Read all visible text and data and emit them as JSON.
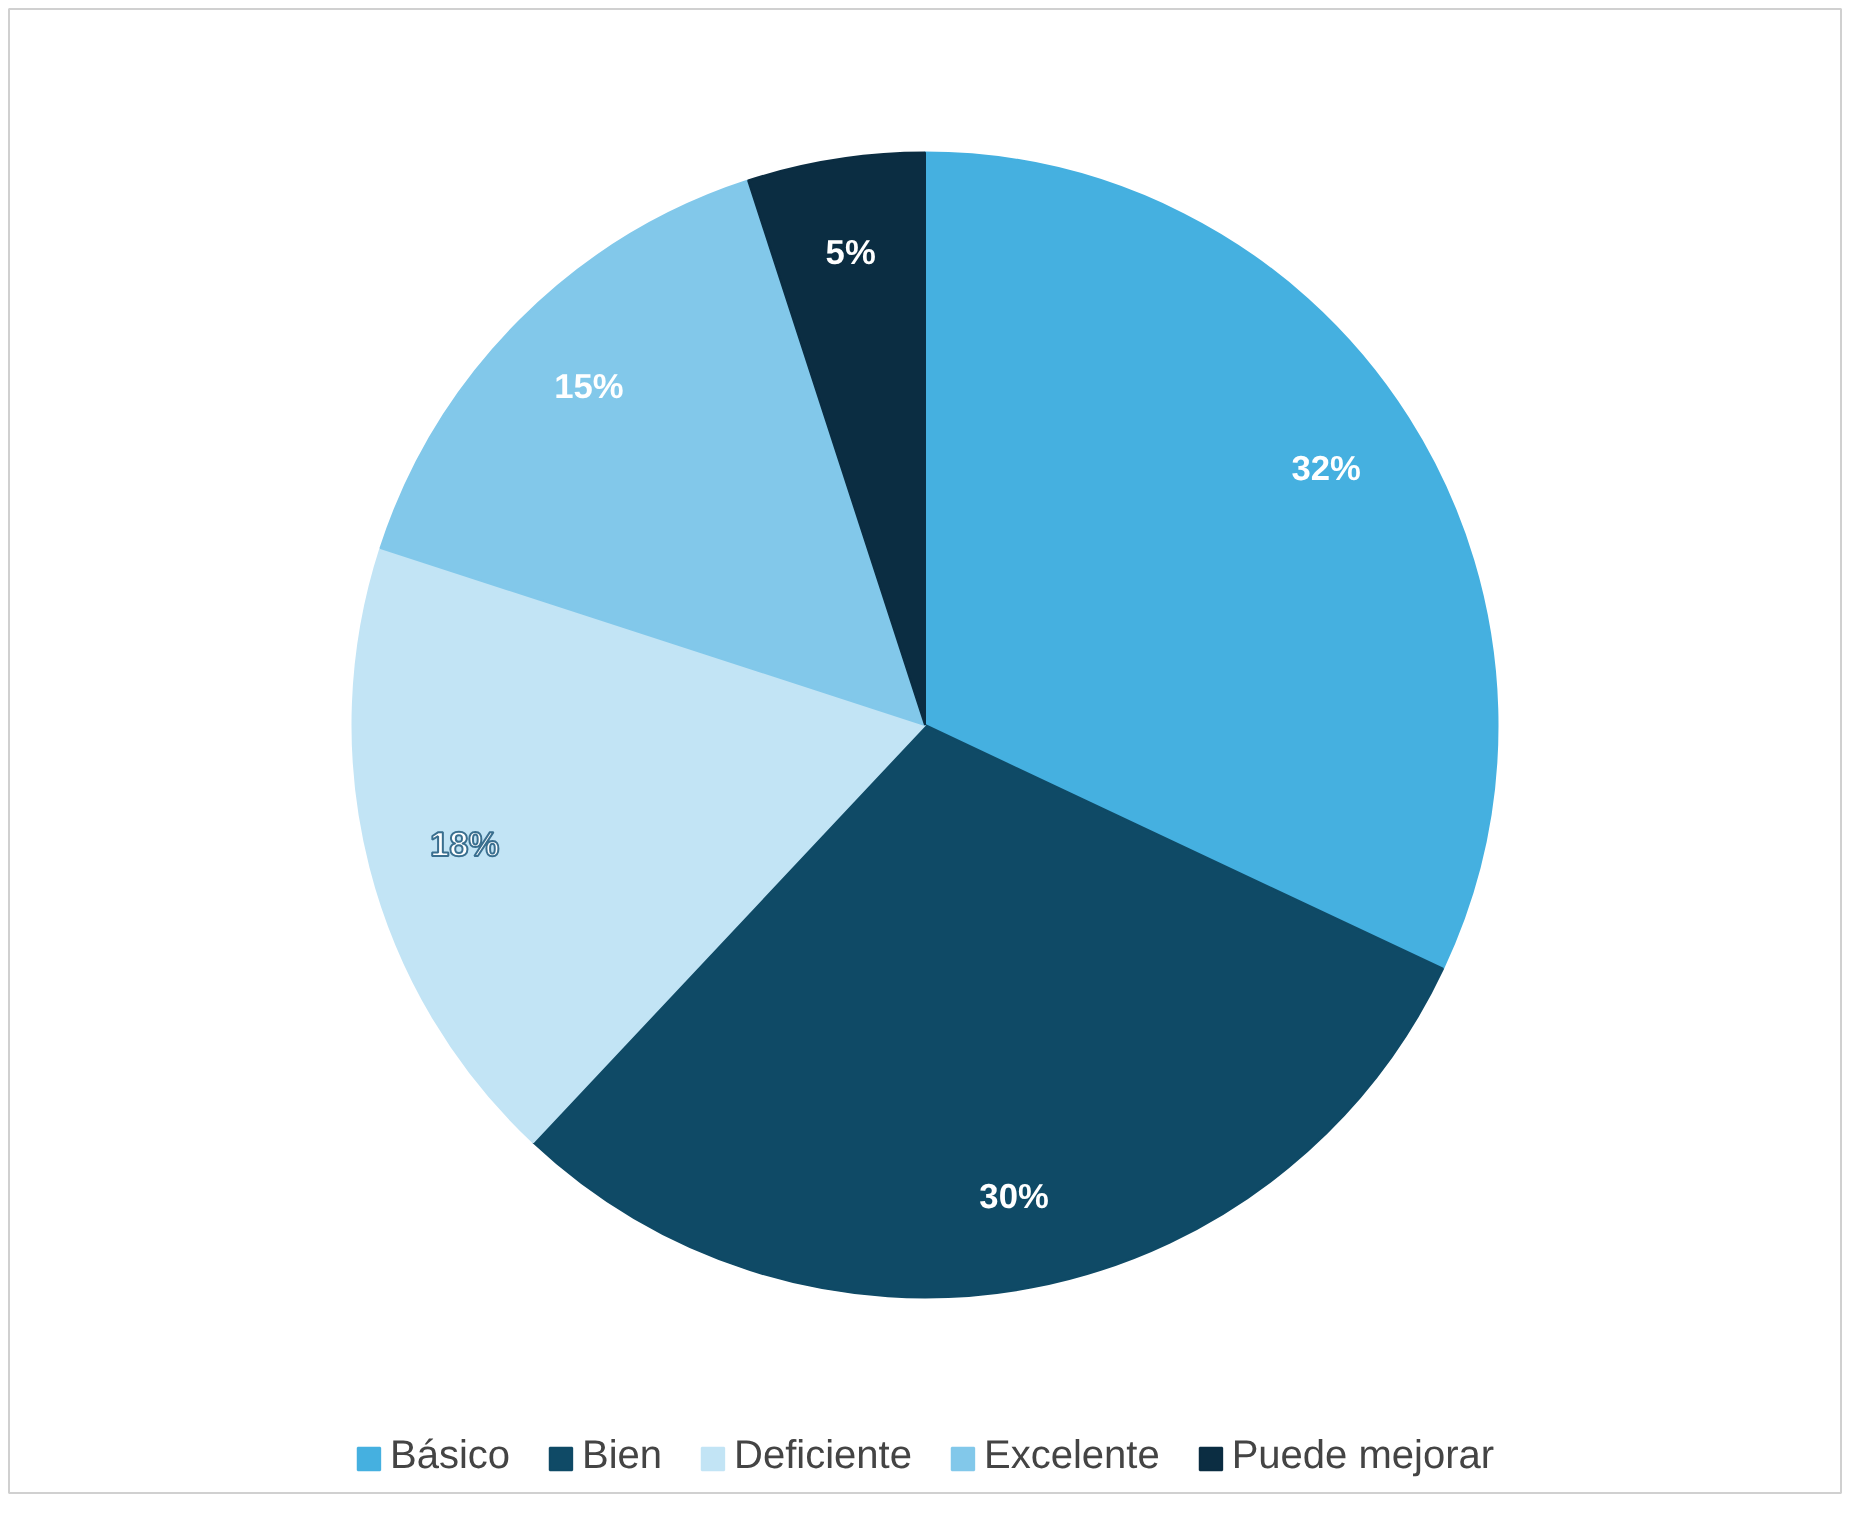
{
  "chart_data": {
    "type": "pie",
    "categories": [
      "Básico",
      "Bien",
      "Deficiente",
      "Excelente",
      "Puede mejorar"
    ],
    "values": [
      32,
      30,
      18,
      15,
      5
    ],
    "value_labels": [
      "32%",
      "30%",
      "18%",
      "15%",
      "5%"
    ],
    "colors": [
      "#45b0e0",
      "#0f4a66",
      "#c2e4f5",
      "#82c8ea",
      "#0b2d42"
    ],
    "legend": "bottom"
  }
}
